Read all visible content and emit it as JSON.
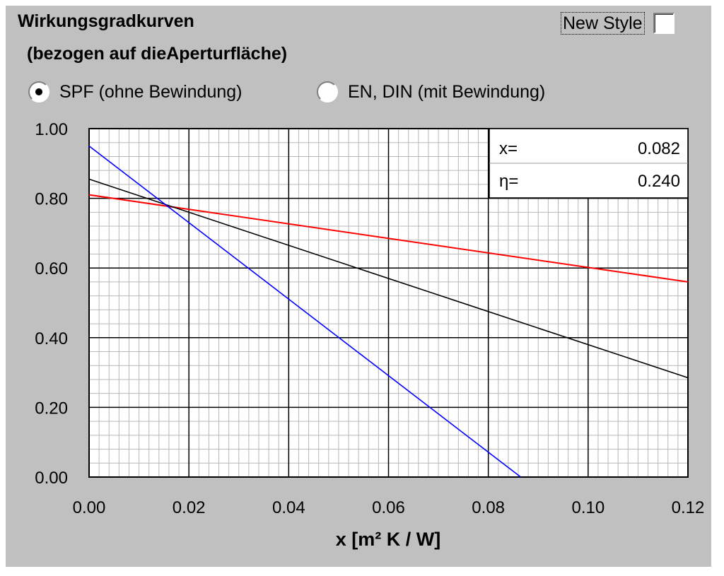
{
  "window": {
    "title": "Wirkungsgradkurven",
    "subtitle": "(bezogen auf dieAperturfläche)"
  },
  "new_style": {
    "label": "New Style",
    "checked": false
  },
  "radio_options": [
    {
      "label": "SPF (ohne Bewindung)",
      "selected": true
    },
    {
      "label": "EN, DIN (mit Bewindung)",
      "selected": false
    }
  ],
  "readout": {
    "x_label": "x=",
    "x_value": "0.082",
    "eta_label": "η=",
    "eta_value": "0.240"
  },
  "chart_data": {
    "type": "line",
    "xlabel": "x [m² K / W]",
    "ylabel": "",
    "xlim": [
      0,
      0.12
    ],
    "ylim": [
      0,
      1
    ],
    "x_ticks": [
      "0.00",
      "0.02",
      "0.04",
      "0.06",
      "0.08",
      "0.10",
      "0.12"
    ],
    "y_ticks": [
      "0.00",
      "0.20",
      "0.40",
      "0.60",
      "0.80",
      "1.00"
    ],
    "grid": true,
    "series": [
      {
        "color": "#ff0000",
        "x": [
          0,
          0.12
        ],
        "values": [
          0.81,
          0.56
        ]
      },
      {
        "color": "#000000",
        "x": [
          0,
          0.12
        ],
        "values": [
          0.855,
          0.285
        ]
      },
      {
        "color": "#0000ff",
        "x": [
          0,
          0.0865
        ],
        "values": [
          0.95,
          0.0
        ]
      }
    ]
  }
}
